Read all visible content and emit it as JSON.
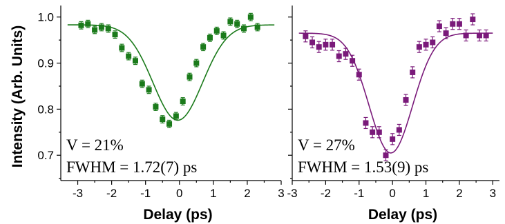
{
  "y_axis_title": "Intensity (Arb. Units)",
  "chart_data": [
    {
      "type": "scatter",
      "xlabel": "Delay (ps)",
      "ylabel": "Intensity (Arb. Units)",
      "xlim": [
        -3.5,
        3
      ],
      "ylim": [
        0.645,
        1.025
      ],
      "xticks": [
        -3,
        -2,
        -1,
        0,
        1,
        2,
        3
      ],
      "yticks": [
        0.7,
        0.8,
        0.9,
        1.0
      ],
      "ytick_labels": [
        "0.7",
        "0.8",
        "0.9",
        "1.0"
      ],
      "color": "#1a7a1a",
      "annotations": [
        "V = 21%",
        "FWHM = 1.72(7) ps"
      ],
      "series": [
        {
          "x": [
            -2.9,
            -2.7,
            -2.5,
            -2.3,
            -2.1,
            -1.9,
            -1.7,
            -1.5,
            -1.3,
            -1.1,
            -0.9,
            -0.7,
            -0.5,
            -0.3,
            -0.1,
            0.1,
            0.3,
            0.5,
            0.7,
            0.9,
            1.1,
            1.3,
            1.5,
            1.7,
            1.9,
            2.1,
            2.3
          ],
          "y": [
            0.982,
            0.985,
            0.972,
            0.978,
            0.975,
            0.962,
            0.933,
            0.915,
            0.905,
            0.855,
            0.842,
            0.805,
            0.778,
            0.768,
            0.785,
            0.817,
            0.87,
            0.9,
            0.935,
            0.955,
            0.97,
            0.96,
            0.99,
            0.985,
            0.975,
            1.0,
            0.978
          ],
          "err": [
            0.008,
            0.008,
            0.008,
            0.008,
            0.008,
            0.008,
            0.008,
            0.008,
            0.008,
            0.008,
            0.008,
            0.008,
            0.008,
            0.008,
            0.008,
            0.008,
            0.008,
            0.008,
            0.008,
            0.008,
            0.008,
            0.008,
            0.008,
            0.008,
            0.008,
            0.008,
            0.008
          ],
          "fit": {
            "type": "gaussian_dip",
            "baseline": 0.983,
            "depth": 0.207,
            "center": -0.05,
            "fwhm": 1.72
          }
        }
      ]
    },
    {
      "type": "scatter",
      "xlabel": "Delay (ps)",
      "xlim": [
        -3,
        3.2
      ],
      "ylim": [
        0.645,
        1.025
      ],
      "xticks": [
        -3,
        -2,
        -1,
        0,
        1,
        2,
        3
      ],
      "yticks": [
        0.7,
        0.8,
        0.9,
        1.0
      ],
      "color": "#7a1a7a",
      "annotations": [
        "V = 27%",
        "FWHM = 1.53(9) ps"
      ],
      "series": [
        {
          "x": [
            -2.6,
            -2.4,
            -2.2,
            -2.0,
            -1.8,
            -1.6,
            -1.4,
            -1.2,
            -1.0,
            -0.8,
            -0.6,
            -0.4,
            -0.2,
            0.0,
            0.2,
            0.4,
            0.6,
            0.8,
            1.0,
            1.2,
            1.4,
            1.6,
            1.8,
            2.0,
            2.2,
            2.4,
            2.6,
            2.8
          ],
          "y": [
            0.958,
            0.945,
            0.935,
            0.94,
            0.94,
            0.915,
            0.92,
            0.905,
            0.875,
            0.77,
            0.75,
            0.75,
            0.7,
            0.735,
            0.755,
            0.82,
            0.88,
            0.935,
            0.94,
            0.945,
            0.98,
            0.965,
            0.985,
            0.985,
            0.96,
            0.995,
            0.96,
            0.96
          ],
          "err": [
            0.012,
            0.012,
            0.012,
            0.012,
            0.012,
            0.012,
            0.012,
            0.012,
            0.012,
            0.012,
            0.012,
            0.012,
            0.012,
            0.012,
            0.012,
            0.012,
            0.012,
            0.012,
            0.012,
            0.012,
            0.012,
            0.012,
            0.012,
            0.012,
            0.012,
            0.012,
            0.012,
            0.012
          ],
          "fit": {
            "type": "gaussian_dip",
            "baseline": 0.965,
            "depth": 0.26,
            "center": -0.05,
            "fwhm": 1.53
          }
        }
      ]
    }
  ]
}
